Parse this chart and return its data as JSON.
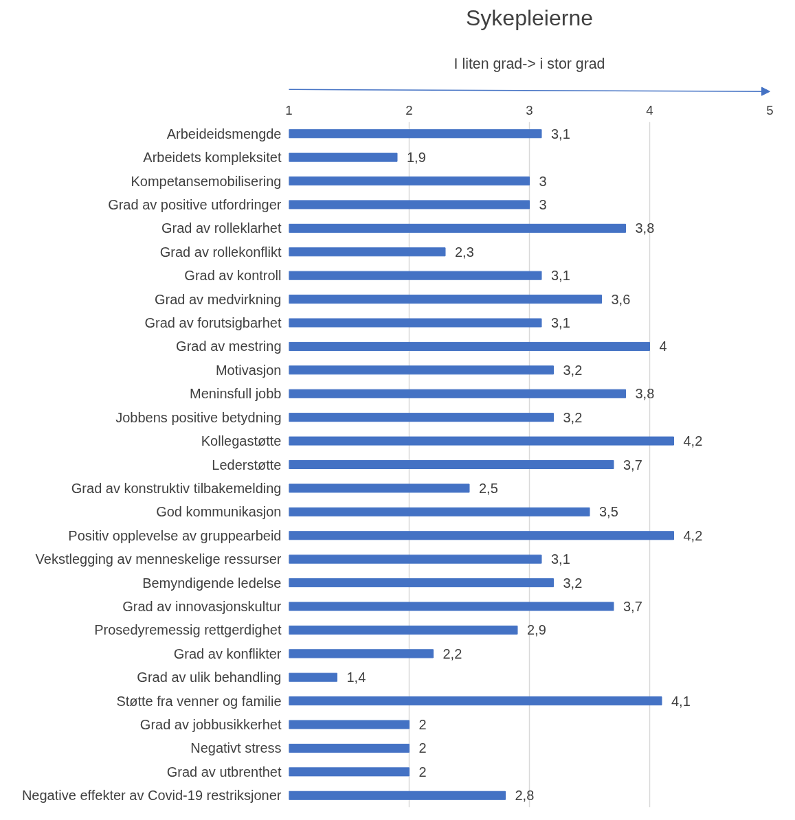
{
  "chart_data": {
    "type": "bar",
    "orientation": "horizontal",
    "title": "Sykepleierne",
    "annotations": [
      "I liten grad-> i stor grad"
    ],
    "categories": [
      "Arbeideidsmengde",
      "Arbeidets kompleksitet",
      "Kompetansemobilisering",
      "Grad av positive utfordringer",
      "Grad av rolleklarhet",
      "Grad av rollekonflikt",
      "Grad av kontroll",
      "Grad av medvirkning",
      "Grad av forutsigbarhet",
      "Grad av mestring",
      "Motivasjon",
      "Meninsfull jobb",
      "Jobbens positive betydning",
      "Kollegastøtte",
      "Lederstøtte",
      "Grad av konstruktiv tilbakemelding",
      "God kommunikasjon",
      "Positiv opplevelse av gruppearbeid",
      "Vekstlegging av menneskelige ressurser",
      "Bemyndigende ledelse",
      "Grad av innovasjonskultur",
      "Prosedyremessig rettgerdighet",
      "Grad av konflikter",
      "Grad av ulik behandling",
      "Støtte fra venner og familie",
      "Grad av jobbusikkerhet",
      "Negativt stress",
      "Grad av utbrenthet",
      "Negative effekter av Covid-19 restriksjoner"
    ],
    "values": [
      3.1,
      1.9,
      3,
      3,
      3.8,
      2.3,
      3.1,
      3.6,
      3.1,
      4,
      3.2,
      3.8,
      3.2,
      4.2,
      3.7,
      2.5,
      3.5,
      4.2,
      3.1,
      3.2,
      3.7,
      2.9,
      2.2,
      1.4,
      4.1,
      2,
      2,
      2,
      2.8
    ],
    "value_labels": [
      "3,1",
      "1,9",
      "3",
      "3",
      "3,8",
      "2,3",
      "3,1",
      "3,6",
      "3,1",
      "4",
      "3,2",
      "3,8",
      "3,2",
      "4,2",
      "3,7",
      "2,5",
      "3,5",
      "4,2",
      "3,1",
      "3,2",
      "3,7",
      "2,9",
      "2,2",
      "1,4",
      "4,1",
      "2",
      "2",
      "2",
      "2,8"
    ],
    "color": "#4472c4",
    "xlim": [
      1,
      5
    ],
    "xticks": [
      1,
      2,
      3,
      4,
      5
    ],
    "grid": "x"
  }
}
